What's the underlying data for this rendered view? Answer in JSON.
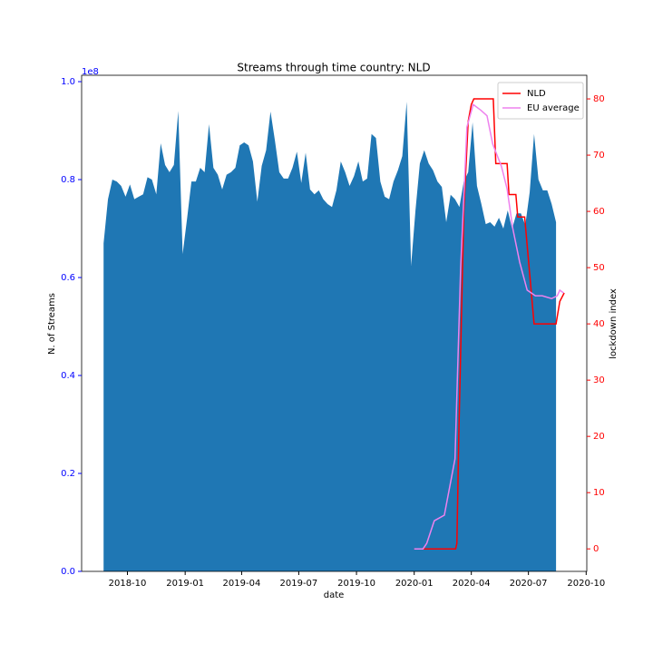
{
  "chart_data": {
    "type": "area",
    "title": "Streams through time country: NLD",
    "xlabel": "date",
    "ylabel": "N. of Streams",
    "y2label": "lockdown index",
    "y_offset_label": "1e8",
    "xlim": [
      "2018-07-20",
      "2020-10-02"
    ],
    "xticks": [
      "2018-10",
      "2019-01",
      "2019-04",
      "2019-07",
      "2019-10",
      "2020-01",
      "2020-04",
      "2020-07",
      "2020-10"
    ],
    "ylim": [
      0,
      1.013
    ],
    "yticks": [
      {
        "value": 0,
        "label": "0.0"
      },
      0.2,
      0.4,
      0.6,
      0.8,
      {
        "value": 1,
        "label": "1.0"
      }
    ],
    "y2lim": [
      -4.0,
      84.2
    ],
    "y2ticks": [
      0,
      10,
      20,
      30,
      40,
      50,
      60,
      70,
      80
    ],
    "legend": "upper right",
    "series": [
      {
        "type": "area",
        "color": "#1f77b4",
        "x": [
          "2018-08-24",
          "2018-08-31",
          "2018-09-07",
          "2018-09-14",
          "2018-09-21",
          "2018-09-28",
          "2018-10-05",
          "2018-10-12",
          "2018-10-19",
          "2018-10-26",
          "2018-11-02",
          "2018-11-09",
          "2018-11-16",
          "2018-11-23",
          "2018-11-30",
          "2018-12-07",
          "2018-12-14",
          "2018-12-21",
          "2018-12-28",
          "2019-01-04",
          "2019-01-11",
          "2019-01-18",
          "2019-01-25",
          "2019-02-01",
          "2019-02-08",
          "2019-02-15",
          "2019-02-22",
          "2019-03-01",
          "2019-03-08",
          "2019-03-15",
          "2019-03-22",
          "2019-03-29",
          "2019-04-05",
          "2019-04-12",
          "2019-04-19",
          "2019-04-26",
          "2019-05-03",
          "2019-05-10",
          "2019-05-17",
          "2019-05-24",
          "2019-05-31",
          "2019-06-07",
          "2019-06-14",
          "2019-06-21",
          "2019-06-28",
          "2019-07-05",
          "2019-07-12",
          "2019-07-19",
          "2019-07-26",
          "2019-08-02",
          "2019-08-09",
          "2019-08-16",
          "2019-08-23",
          "2019-08-30",
          "2019-09-06",
          "2019-09-13",
          "2019-09-20",
          "2019-09-27",
          "2019-10-04",
          "2019-10-11",
          "2019-10-18",
          "2019-10-25",
          "2019-11-01",
          "2019-11-08",
          "2019-11-15",
          "2019-11-22",
          "2019-11-29",
          "2019-12-06",
          "2019-12-13",
          "2019-12-20",
          "2019-12-27",
          "2020-01-03",
          "2020-01-10",
          "2020-01-17",
          "2020-01-24",
          "2020-01-31",
          "2020-02-07",
          "2020-02-14",
          "2020-02-21",
          "2020-02-28",
          "2020-03-06",
          "2020-03-13",
          "2020-03-20",
          "2020-03-27",
          "2020-04-03",
          "2020-04-10",
          "2020-04-17",
          "2020-04-24",
          "2020-05-01",
          "2020-05-08",
          "2020-05-15",
          "2020-05-22",
          "2020-05-29",
          "2020-06-05",
          "2020-06-12",
          "2020-06-19",
          "2020-06-26",
          "2020-07-03",
          "2020-07-10",
          "2020-07-17",
          "2020-07-24",
          "2020-07-31",
          "2020-08-07",
          "2020-08-14"
        ],
        "values": [
          0.67,
          0.76,
          0.8,
          0.796,
          0.787,
          0.765,
          0.79,
          0.76,
          0.765,
          0.77,
          0.805,
          0.8,
          0.77,
          0.874,
          0.83,
          0.815,
          0.83,
          0.94,
          0.648,
          0.72,
          0.796,
          0.796,
          0.824,
          0.815,
          0.913,
          0.824,
          0.81,
          0.78,
          0.81,
          0.815,
          0.824,
          0.87,
          0.876,
          0.87,
          0.837,
          0.755,
          0.828,
          0.86,
          0.939,
          0.88,
          0.815,
          0.802,
          0.802,
          0.824,
          0.857,
          0.793,
          0.855,
          0.78,
          0.77,
          0.778,
          0.76,
          0.75,
          0.744,
          0.778,
          0.837,
          0.815,
          0.787,
          0.807,
          0.837,
          0.796,
          0.802,
          0.893,
          0.885,
          0.796,
          0.765,
          0.76,
          0.796,
          0.819,
          0.848,
          0.959,
          0.624,
          0.737,
          0.833,
          0.86,
          0.833,
          0.819,
          0.796,
          0.785,
          0.713,
          0.769,
          0.76,
          0.744,
          0.796,
          0.815,
          0.917,
          0.787,
          0.75,
          0.709,
          0.713,
          0.704,
          0.722,
          0.7,
          0.737,
          0.7,
          0.731,
          0.731,
          0.707,
          0.774,
          0.893,
          0.8,
          0.778,
          0.778,
          0.75,
          0.713
        ]
      },
      {
        "type": "line",
        "name": "NLD",
        "color": "#ff0000",
        "axis": "y2",
        "x": [
          "2020-01-01",
          "2020-03-07",
          "2020-03-09",
          "2020-03-12",
          "2020-03-20",
          "2020-03-27",
          "2020-04-01",
          "2020-04-05",
          "2020-05-06",
          "2020-05-10",
          "2020-05-28",
          "2020-05-31",
          "2020-06-11",
          "2020-06-14",
          "2020-06-25",
          "2020-07-10",
          "2020-08-14",
          "2020-08-20",
          "2020-08-27"
        ],
        "values": [
          0,
          0,
          1,
          20,
          60,
          76,
          79,
          80,
          80,
          68.5,
          68.5,
          63,
          63,
          59,
          59,
          40,
          40,
          44,
          45.5
        ]
      },
      {
        "type": "line",
        "name": "EU average",
        "color": "#ee82ee",
        "axis": "y2",
        "x": [
          "2020-01-01",
          "2020-01-15",
          "2020-01-21",
          "2020-02-02",
          "2020-02-18",
          "2020-03-06",
          "2020-03-15",
          "2020-03-25",
          "2020-04-04",
          "2020-04-16",
          "2020-04-26",
          "2020-05-05",
          "2020-05-19",
          "2020-05-28",
          "2020-06-06",
          "2020-06-17",
          "2020-06-29",
          "2020-07-12",
          "2020-07-23",
          "2020-08-07",
          "2020-08-16",
          "2020-08-20",
          "2020-08-26"
        ],
        "values": [
          0,
          0,
          1,
          5,
          6,
          16,
          50,
          75,
          79,
          78,
          77,
          72,
          68,
          64,
          57,
          51,
          46,
          45,
          45,
          44.5,
          45,
          46,
          45.5
        ]
      }
    ]
  }
}
